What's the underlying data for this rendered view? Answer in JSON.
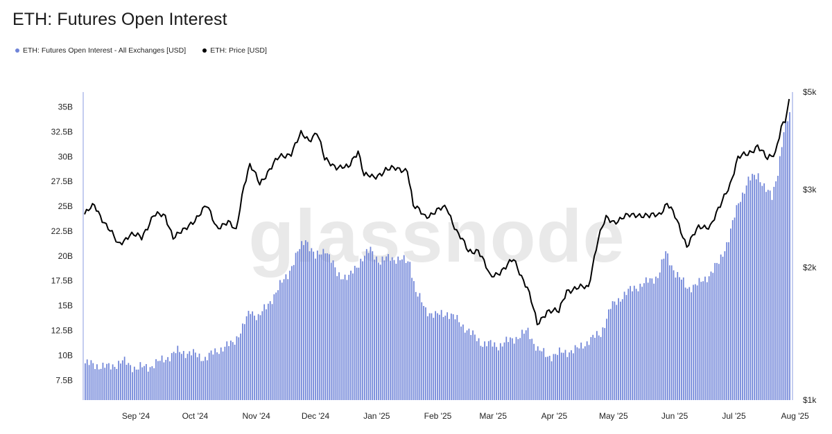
{
  "title": "ETH: Futures Open Interest",
  "legend": [
    {
      "label": "ETH: Futures Open Interest - All Exchanges [USD]",
      "color": "#6f84d8"
    },
    {
      "label": "ETH: Price [USD]",
      "color": "#000000"
    }
  ],
  "watermark": "glassnode",
  "chart_data": {
    "type": "bar",
    "title": "ETH: Futures Open Interest",
    "x_labels": [
      "Sep '24",
      "Oct '24",
      "Nov '24",
      "Dec '24",
      "Jan '25",
      "Feb '25",
      "Mar '25",
      "Apr '25",
      "May '25",
      "Jun '25",
      "Jul '25",
      "Aug '25"
    ],
    "y_left": {
      "ticks": [
        "7.5B",
        "10B",
        "12.5B",
        "15B",
        "17.5B",
        "20B",
        "22.5B",
        "25B",
        "27.5B",
        "30B",
        "32.5B",
        "35B"
      ],
      "tick_values": [
        7.5,
        10,
        12.5,
        15,
        17.5,
        20,
        22.5,
        25,
        27.5,
        30,
        32.5,
        35
      ],
      "range": [
        5.5,
        36.5
      ]
    },
    "y_right": {
      "ticks": [
        "$1k",
        "$2k",
        "$3k",
        "$5k"
      ],
      "tick_values": [
        1000,
        2000,
        3000,
        5000
      ],
      "scale": "log",
      "range": [
        1000,
        5000
      ]
    },
    "x_range": [
      "2024-08-20",
      "2025-08-13"
    ],
    "grid": false,
    "legend_placement": "top-left",
    "series": [
      {
        "name": "ETH: Futures Open Interest - All Exchanges [USD]",
        "kind": "bar",
        "axis": "left",
        "color": "#6f84d8",
        "points": [
          [
            "2024-08-20",
            9.2
          ],
          [
            "2024-09-01",
            8.8
          ],
          [
            "2024-09-08",
            9.4
          ],
          [
            "2024-09-15",
            8.7
          ],
          [
            "2024-09-22",
            8.9
          ],
          [
            "2024-09-29",
            9.6
          ],
          [
            "2024-10-06",
            10.4
          ],
          [
            "2024-10-13",
            10.2
          ],
          [
            "2024-10-20",
            9.7
          ],
          [
            "2024-10-27",
            10.6
          ],
          [
            "2024-11-03",
            11.2
          ],
          [
            "2024-11-08",
            12.8
          ],
          [
            "2024-11-12",
            14.5
          ],
          [
            "2024-11-16",
            13.9
          ],
          [
            "2024-11-20",
            14.8
          ],
          [
            "2024-11-25",
            16.4
          ],
          [
            "2024-12-01",
            18.2
          ],
          [
            "2024-12-06",
            20.3
          ],
          [
            "2024-12-10",
            21.8
          ],
          [
            "2024-12-15",
            19.8
          ],
          [
            "2024-12-20",
            20.8
          ],
          [
            "2024-12-26",
            18.2
          ],
          [
            "2025-01-01",
            17.8
          ],
          [
            "2025-01-07",
            19.6
          ],
          [
            "2025-01-12",
            20.6
          ],
          [
            "2025-01-17",
            19.4
          ],
          [
            "2025-01-22",
            19.9
          ],
          [
            "2025-01-27",
            19.6
          ],
          [
            "2025-02-01",
            19.4
          ],
          [
            "2025-02-04",
            16.4
          ],
          [
            "2025-02-09",
            14.6
          ],
          [
            "2025-02-14",
            14.0
          ],
          [
            "2025-02-20",
            14.3
          ],
          [
            "2025-02-26",
            13.4
          ],
          [
            "2025-03-04",
            12.2
          ],
          [
            "2025-03-10",
            11.2
          ],
          [
            "2025-03-18",
            11.0
          ],
          [
            "2025-03-26",
            11.7
          ],
          [
            "2025-04-02",
            12.4
          ],
          [
            "2025-04-07",
            10.6
          ],
          [
            "2025-04-12",
            9.9
          ],
          [
            "2025-04-20",
            10.3
          ],
          [
            "2025-04-27",
            10.6
          ],
          [
            "2025-05-03",
            11.5
          ],
          [
            "2025-05-09",
            12.2
          ],
          [
            "2025-05-14",
            14.8
          ],
          [
            "2025-05-20",
            16.0
          ],
          [
            "2025-05-26",
            16.8
          ],
          [
            "2025-06-01",
            17.3
          ],
          [
            "2025-06-07",
            18.0
          ],
          [
            "2025-06-11",
            20.3
          ],
          [
            "2025-06-16",
            18.3
          ],
          [
            "2025-06-22",
            16.8
          ],
          [
            "2025-06-28",
            17.2
          ],
          [
            "2025-07-03",
            18.1
          ],
          [
            "2025-07-08",
            19.3
          ],
          [
            "2025-07-13",
            21.8
          ],
          [
            "2025-07-18",
            25.4
          ],
          [
            "2025-07-23",
            27.6
          ],
          [
            "2025-07-28",
            28.2
          ],
          [
            "2025-08-01",
            26.6
          ],
          [
            "2025-08-04",
            25.9
          ],
          [
            "2025-08-07",
            28.6
          ],
          [
            "2025-08-10",
            32.4
          ],
          [
            "2025-08-13",
            34.3
          ]
        ]
      },
      {
        "name": "ETH: Price [USD]",
        "kind": "line",
        "axis": "right",
        "color": "#000000",
        "points": [
          [
            "2024-08-20",
            2640
          ],
          [
            "2024-08-25",
            2760
          ],
          [
            "2024-08-31",
            2500
          ],
          [
            "2024-09-06",
            2250
          ],
          [
            "2024-09-12",
            2380
          ],
          [
            "2024-09-18",
            2330
          ],
          [
            "2024-09-24",
            2640
          ],
          [
            "2024-09-30",
            2600
          ],
          [
            "2024-10-04",
            2360
          ],
          [
            "2024-10-10",
            2420
          ],
          [
            "2024-10-16",
            2610
          ],
          [
            "2024-10-21",
            2750
          ],
          [
            "2024-10-26",
            2480
          ],
          [
            "2024-11-01",
            2520
          ],
          [
            "2024-11-05",
            2420
          ],
          [
            "2024-11-09",
            3090
          ],
          [
            "2024-11-12",
            3400
          ],
          [
            "2024-11-17",
            3100
          ],
          [
            "2024-11-21",
            3300
          ],
          [
            "2024-11-27",
            3550
          ],
          [
            "2024-12-03",
            3650
          ],
          [
            "2024-12-08",
            4000
          ],
          [
            "2024-12-12",
            3900
          ],
          [
            "2024-12-16",
            4070
          ],
          [
            "2024-12-20",
            3500
          ],
          [
            "2024-12-26",
            3400
          ],
          [
            "2025-01-01",
            3350
          ],
          [
            "2025-01-06",
            3700
          ],
          [
            "2025-01-09",
            3250
          ],
          [
            "2025-01-14",
            3180
          ],
          [
            "2025-01-20",
            3350
          ],
          [
            "2025-01-26",
            3330
          ],
          [
            "2025-01-31",
            3350
          ],
          [
            "2025-02-03",
            2750
          ],
          [
            "2025-02-09",
            2620
          ],
          [
            "2025-02-15",
            2680
          ],
          [
            "2025-02-20",
            2740
          ],
          [
            "2025-02-25",
            2420
          ],
          [
            "2025-03-03",
            2170
          ],
          [
            "2025-03-08",
            2200
          ],
          [
            "2025-03-14",
            1900
          ],
          [
            "2025-03-22",
            2000
          ],
          [
            "2025-03-26",
            2080
          ],
          [
            "2025-04-02",
            1800
          ],
          [
            "2025-04-07",
            1480
          ],
          [
            "2025-04-12",
            1600
          ],
          [
            "2025-04-18",
            1580
          ],
          [
            "2025-04-22",
            1780
          ],
          [
            "2025-04-28",
            1790
          ],
          [
            "2025-05-03",
            1810
          ],
          [
            "2025-05-08",
            2320
          ],
          [
            "2025-05-12",
            2580
          ],
          [
            "2025-05-16",
            2550
          ],
          [
            "2025-05-22",
            2600
          ],
          [
            "2025-05-28",
            2650
          ],
          [
            "2025-06-03",
            2600
          ],
          [
            "2025-06-08",
            2650
          ],
          [
            "2025-06-12",
            2800
          ],
          [
            "2025-06-16",
            2600
          ],
          [
            "2025-06-22",
            2250
          ],
          [
            "2025-06-28",
            2450
          ],
          [
            "2025-07-04",
            2500
          ],
          [
            "2025-07-09",
            2740
          ],
          [
            "2025-07-14",
            3100
          ],
          [
            "2025-07-18",
            3550
          ],
          [
            "2025-07-23",
            3600
          ],
          [
            "2025-07-28",
            3800
          ],
          [
            "2025-08-02",
            3500
          ],
          [
            "2025-08-06",
            3650
          ],
          [
            "2025-08-09",
            4200
          ],
          [
            "2025-08-11",
            4300
          ],
          [
            "2025-08-13",
            4720
          ]
        ]
      }
    ]
  }
}
